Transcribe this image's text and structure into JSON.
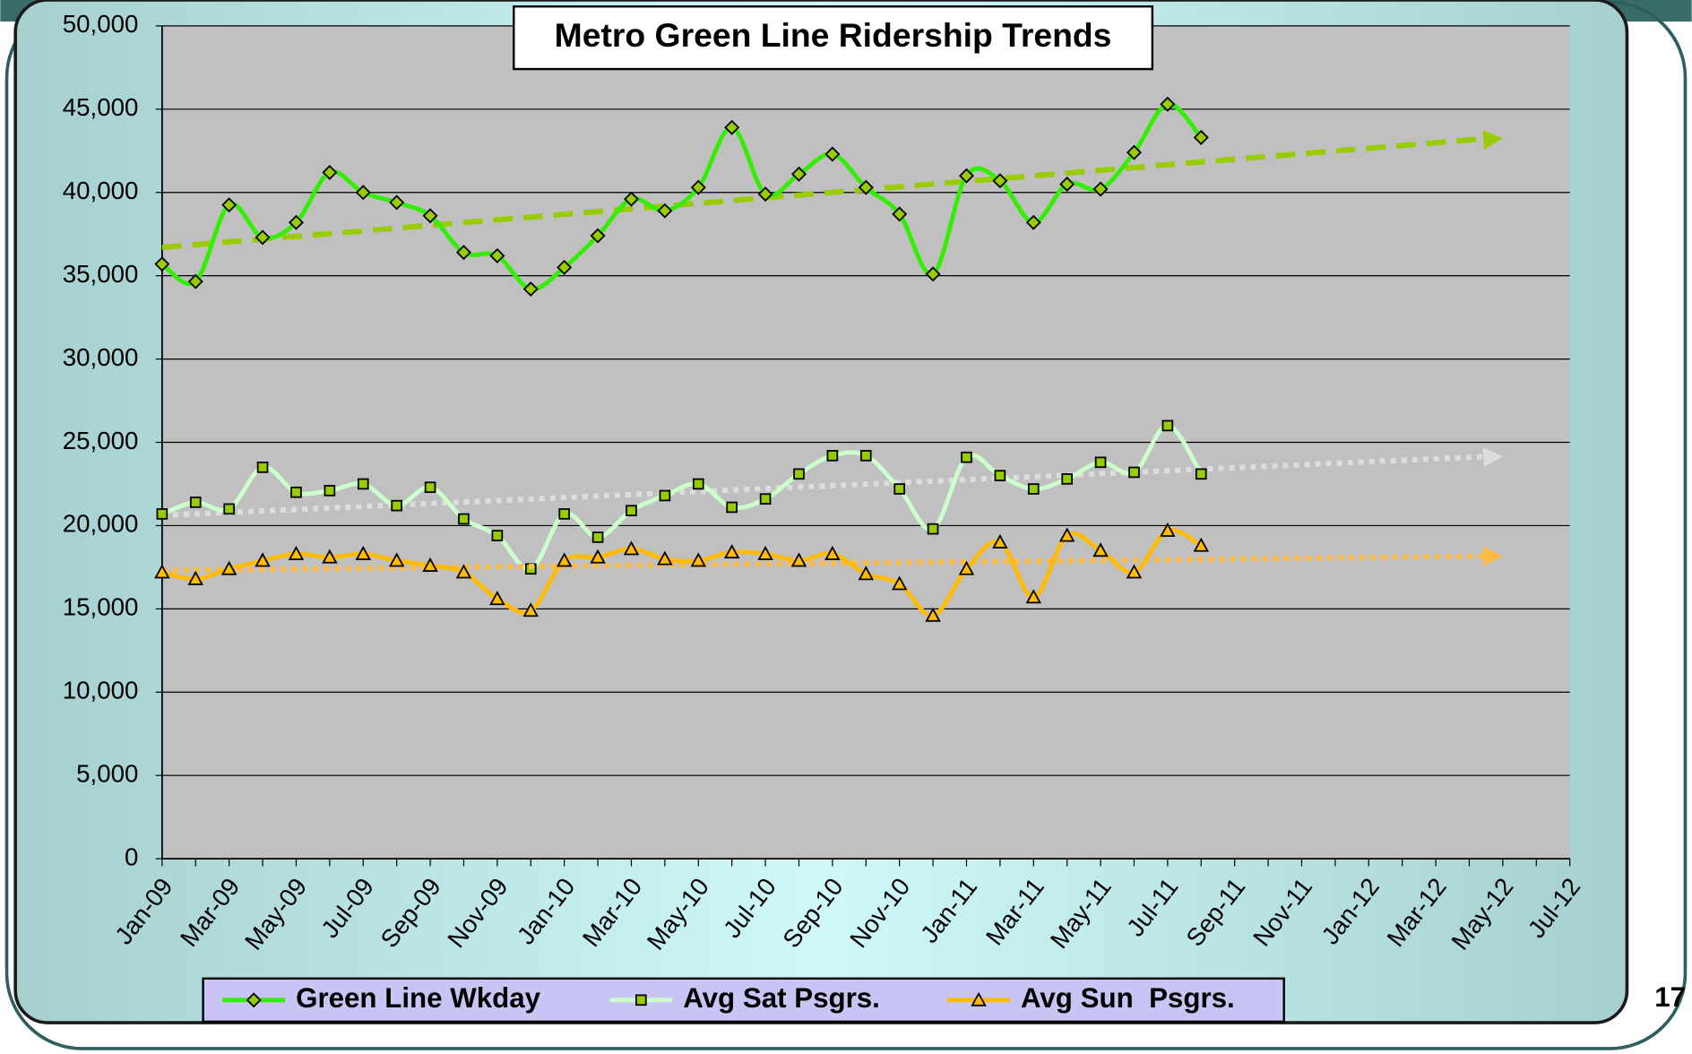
{
  "chart_data": {
    "type": "line",
    "title": "Metro Green Line Ridership Trends",
    "page_number": "17",
    "categories": [
      "Jan-09",
      null,
      "Mar-09",
      null,
      "May-09",
      null,
      "Jul-09",
      null,
      "Sep-09",
      null,
      "Nov-09",
      null,
      "Jan-10",
      null,
      "Mar-10",
      null,
      "May-10",
      null,
      "Jul-10",
      null,
      "Sep-10",
      null,
      "Nov-10",
      null,
      "Jan-11",
      null,
      "Mar-11",
      null,
      "May-11",
      null,
      "Jul-11",
      null,
      "Sep-11",
      null,
      "Nov-11",
      null,
      "Jan-12",
      null,
      "Mar-12",
      null,
      "May-12",
      null,
      "Jul-12"
    ],
    "series": [
      {
        "name": "Green Line Wkday",
        "color": "#33ee00",
        "marker": "diamond",
        "trend_color": "#99cc00",
        "values": [
          35700,
          34650,
          39250,
          37300,
          38200,
          41200,
          40000,
          39400,
          38600,
          36400,
          36200,
          34200,
          35500,
          37400,
          39600,
          38900,
          40300,
          43900,
          39900,
          41100,
          42300,
          40300,
          38700,
          35100,
          41000,
          40700,
          38200,
          40500,
          40200,
          42400,
          45300,
          43300,
          null,
          null,
          null,
          null,
          null,
          null,
          null,
          null,
          null,
          null,
          null
        ]
      },
      {
        "name": "Avg Sat Psgrs.",
        "color": "#ccffcc",
        "marker": "square",
        "trend_color": "#dddddd",
        "values": [
          20700,
          21400,
          21000,
          23500,
          22000,
          22100,
          22500,
          21200,
          22300,
          20400,
          19400,
          17400,
          20700,
          19300,
          20900,
          21800,
          22500,
          21100,
          21600,
          23100,
          24200,
          24200,
          22200,
          19800,
          24100,
          23000,
          22200,
          22800,
          23800,
          23200,
          26000,
          23100,
          null,
          null,
          null,
          null,
          null,
          null,
          null,
          null,
          null,
          null,
          null
        ]
      },
      {
        "name": "Avg Sun  Psgrs.",
        "color": "#ffbb00",
        "marker": "triangle",
        "trend_color": "#ffbb44",
        "values": [
          17200,
          16800,
          17400,
          17900,
          18300,
          18100,
          18300,
          17900,
          17600,
          17200,
          15600,
          14900,
          17900,
          18100,
          18600,
          18000,
          17900,
          18400,
          18300,
          17900,
          18300,
          17100,
          16500,
          14600,
          17400,
          19000,
          15700,
          19400,
          18500,
          17200,
          19700,
          18800,
          null,
          null,
          null,
          null,
          null,
          null,
          null,
          null,
          null,
          null,
          null
        ]
      }
    ],
    "ylim": [
      0,
      50000
    ],
    "yticks": [
      0,
      {
        "value": 5000,
        "label": "5,000"
      },
      {
        "value": 10000,
        "label": "10,000"
      },
      {
        "value": 15000,
        "label": "15,000"
      },
      {
        "value": 20000,
        "label": "20,000"
      },
      {
        "value": 25000,
        "label": "25,000"
      },
      {
        "value": 30000,
        "label": "30,000"
      },
      {
        "value": 35000,
        "label": "35,000"
      },
      {
        "value": 40000,
        "label": "40,000"
      },
      {
        "value": 45000,
        "label": "45,000"
      },
      {
        "value": 50000,
        "label": "50,000"
      }
    ],
    "grid": true,
    "trendlines": true,
    "legend": "bottom",
    "plot_color": "#c0c0c0"
  }
}
